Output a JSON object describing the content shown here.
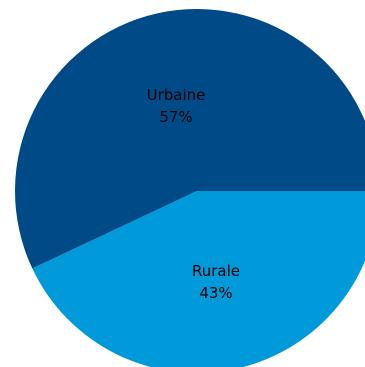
{
  "chart_data": {
    "type": "pie",
    "title": "",
    "slices": [
      {
        "label": "Urbaine",
        "value": 57,
        "value_label": "57%",
        "color": "#004a87"
      },
      {
        "label": "Rurale",
        "value": 43,
        "value_label": "43%",
        "color": "#0099d9"
      }
    ],
    "legend": "none",
    "labels": "inside"
  }
}
